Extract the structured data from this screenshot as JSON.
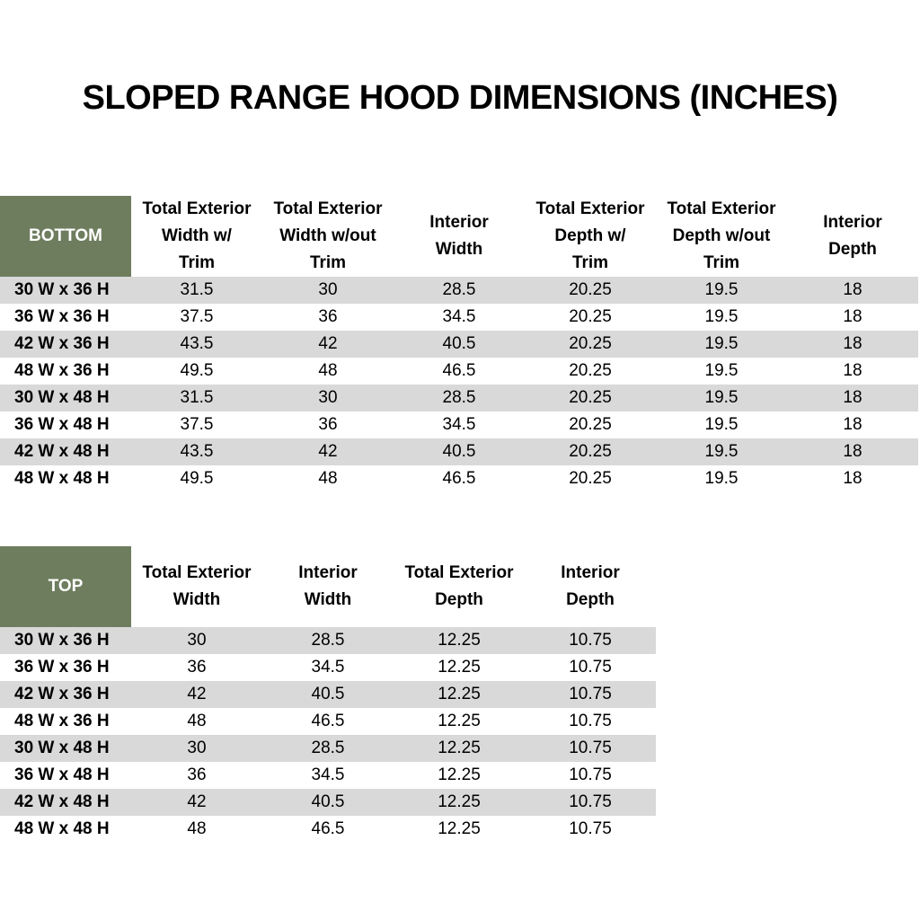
{
  "title": "SLOPED RANGE HOOD DIMENSIONS (INCHES)",
  "tables": [
    {
      "corner": "BOTTOM",
      "headers": [
        [
          "Total Exterior",
          "Width w/",
          "Trim"
        ],
        [
          "Total Exterior",
          "Width w/out",
          "Trim"
        ],
        [
          "Interior",
          "Width"
        ],
        [
          "Total Exterior",
          "Depth w/",
          "Trim"
        ],
        [
          "Total Exterior",
          "Depth w/out",
          "Trim"
        ],
        [
          "Interior",
          "Depth"
        ]
      ],
      "rows": [
        [
          "30 W x 36 H",
          "31.5",
          "30",
          "28.5",
          "20.25",
          "19.5",
          "18"
        ],
        [
          "36 W x 36 H",
          "37.5",
          "36",
          "34.5",
          "20.25",
          "19.5",
          "18"
        ],
        [
          "42 W x 36 H",
          "43.5",
          "42",
          "40.5",
          "20.25",
          "19.5",
          "18"
        ],
        [
          "48 W x 36 H",
          "49.5",
          "48",
          "46.5",
          "20.25",
          "19.5",
          "18"
        ],
        [
          "30 W x 48 H",
          "31.5",
          "30",
          "28.5",
          "20.25",
          "19.5",
          "18"
        ],
        [
          "36 W x 48 H",
          "37.5",
          "36",
          "34.5",
          "20.25",
          "19.5",
          "18"
        ],
        [
          "42 W x 48 H",
          "43.5",
          "42",
          "40.5",
          "20.25",
          "19.5",
          "18"
        ],
        [
          "48 W x 48 H",
          "49.5",
          "48",
          "46.5",
          "20.25",
          "19.5",
          "18"
        ]
      ]
    },
    {
      "corner": "TOP",
      "headers": [
        [
          "Total Exterior",
          "Width"
        ],
        [
          "Interior",
          "Width"
        ],
        [
          "Total Exterior",
          "Depth"
        ],
        [
          "Interior",
          "Depth"
        ]
      ],
      "rows": [
        [
          "30 W x 36 H",
          "30",
          "28.5",
          "12.25",
          "10.75"
        ],
        [
          "36 W x 36 H",
          "36",
          "34.5",
          "12.25",
          "10.75"
        ],
        [
          "42 W x 36 H",
          "42",
          "40.5",
          "12.25",
          "10.75"
        ],
        [
          "48 W x 36 H",
          "48",
          "46.5",
          "12.25",
          "10.75"
        ],
        [
          "30 W x 48 H",
          "30",
          "28.5",
          "12.25",
          "10.75"
        ],
        [
          "36 W x 48 H",
          "36",
          "34.5",
          "12.25",
          "10.75"
        ],
        [
          "42 W x 48 H",
          "42",
          "40.5",
          "12.25",
          "10.75"
        ],
        [
          "48 W x 48 H",
          "48",
          "46.5",
          "12.25",
          "10.75"
        ]
      ]
    }
  ]
}
